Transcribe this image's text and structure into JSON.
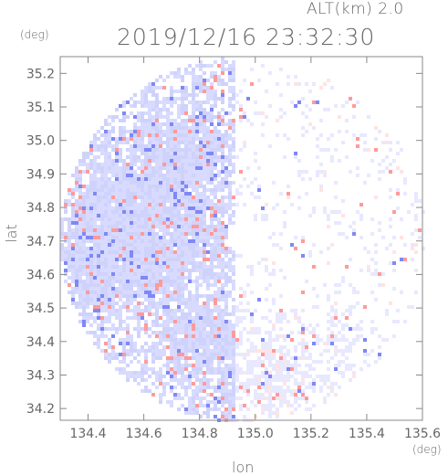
{
  "header": {
    "altitude": "ALT(km) 2.0",
    "datetime": "2019/12/16 23:32:30"
  },
  "chart_data": {
    "type": "heatmap",
    "title": "2019/12/16 23:32:30",
    "subtitle": "ALT(km) 2.0",
    "xlabel": "lon",
    "ylabel": "lat",
    "x_unit": "(deg)",
    "y_unit": "(deg)",
    "xlim": [
      134.3,
      135.6
    ],
    "ylim": [
      34.165,
      35.25
    ],
    "x_ticks": [
      "134.4",
      "134.6",
      "134.8",
      "135.0",
      "135.2",
      "135.4",
      "135.6"
    ],
    "y_ticks": [
      "34.2",
      "34.3",
      "34.4",
      "34.5",
      "34.6",
      "34.7",
      "34.8",
      "34.9",
      "35.0",
      "35.1",
      "35.2"
    ],
    "grid": false,
    "radar_center": {
      "lon": 134.95,
      "lat": 34.71
    },
    "colors": {
      "negative": "#b3b8ff",
      "positive": "#ff9a9a",
      "neutral": "#e8e8ff",
      "axis": "#888888"
    }
  }
}
